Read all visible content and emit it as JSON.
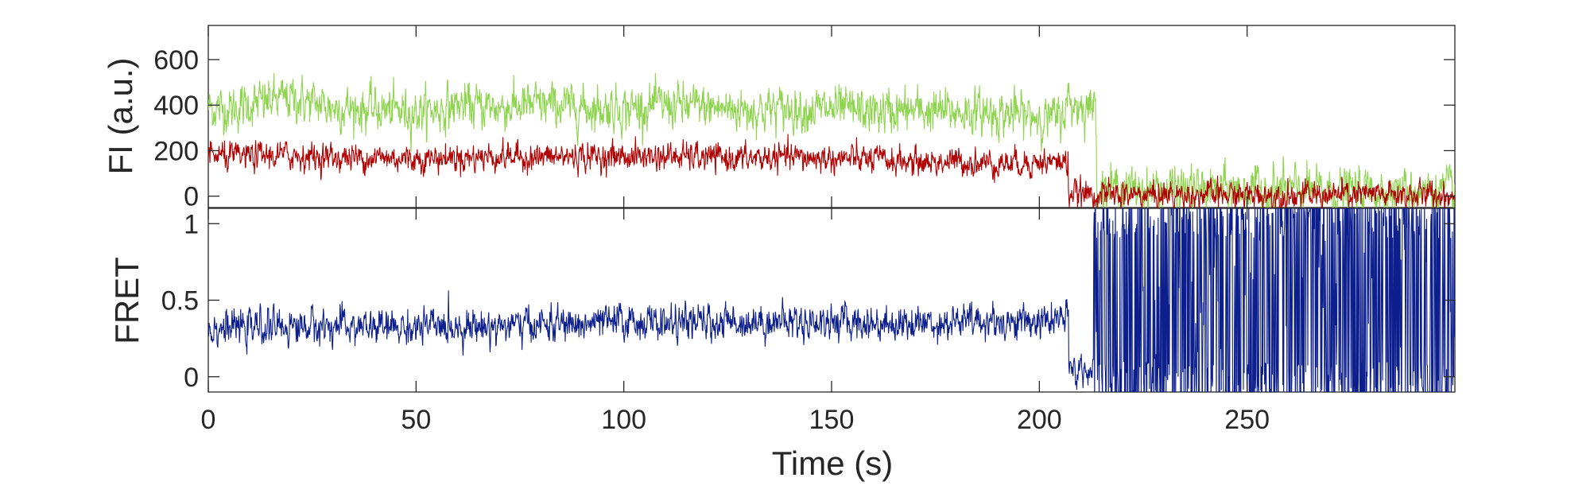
{
  "chart_data": [
    {
      "type": "line",
      "panel": "top",
      "ylabel": "FI (a.u.)",
      "xlabel": "",
      "xlim": [
        0,
        300
      ],
      "ylim": [
        -50,
        750
      ],
      "yticks": [
        0,
        200,
        400,
        600
      ],
      "ytick_labels": [
        "0",
        "200",
        "400",
        "600"
      ],
      "grid": false,
      "box": true,
      "series": [
        {
          "color": "#8fd44f",
          "x": [
            0,
            5,
            10,
            15,
            20,
            25,
            30,
            40,
            50,
            55,
            60,
            70,
            80,
            90,
            100,
            110,
            120,
            130,
            140,
            150,
            160,
            170,
            180,
            190,
            200,
            205,
            207,
            208,
            212,
            213.5,
            214,
            220,
            230,
            240,
            250,
            260,
            270,
            280,
            290,
            300
          ],
          "values": [
            390,
            380,
            400,
            420,
            430,
            410,
            390,
            380,
            370,
            380,
            400,
            390,
            400,
            390,
            385,
            400,
            390,
            380,
            385,
            380,
            370,
            375,
            370,
            365,
            350,
            340,
            420,
            400,
            390,
            400,
            40,
            30,
            30,
            30,
            30,
            30,
            25,
            25,
            25,
            25
          ],
          "noise": 60
        },
        {
          "color": "#b00000",
          "x": [
            0,
            5,
            10,
            20,
            30,
            40,
            50,
            60,
            70,
            80,
            90,
            100,
            110,
            120,
            130,
            140,
            150,
            160,
            170,
            180,
            190,
            200,
            206.9,
            207,
            220,
            240,
            260,
            280,
            300
          ],
          "values": [
            180,
            170,
            175,
            180,
            170,
            170,
            165,
            170,
            175,
            170,
            175,
            175,
            175,
            170,
            165,
            170,
            165,
            160,
            150,
            150,
            145,
            150,
            150,
            10,
            5,
            5,
            5,
            5,
            5
          ],
          "noise": 38
        }
      ]
    },
    {
      "type": "line",
      "panel": "bottom",
      "ylabel": "FRET",
      "xlabel": "Time (s)",
      "xlim": [
        0,
        300
      ],
      "ylim": [
        -0.1,
        1.1
      ],
      "yticks": [
        0,
        0.5,
        1
      ],
      "ytick_labels": [
        "0",
        "0.5",
        "1"
      ],
      "xticks": [
        0,
        50,
        100,
        150,
        200,
        250
      ],
      "xtick_labels": [
        "0",
        "50",
        "100",
        "150",
        "200",
        "250"
      ],
      "grid": false,
      "box": true,
      "series": [
        {
          "color": "#0d1f8c",
          "x": [
            0,
            10,
            20,
            30,
            40,
            50,
            60,
            70,
            80,
            90,
            100,
            110,
            120,
            130,
            140,
            150,
            160,
            170,
            180,
            190,
            200,
            207,
            207.1,
            213,
            213.1,
            300
          ],
          "values": [
            0.32,
            0.32,
            0.33,
            0.33,
            0.32,
            0.32,
            0.33,
            0.33,
            0.34,
            0.34,
            0.36,
            0.35,
            0.35,
            0.36,
            0.36,
            0.36,
            0.35,
            0.35,
            0.36,
            0.36,
            0.36,
            0.37,
            0.05,
            0.05,
            0.5,
            0.5
          ],
          "noise": 0.07,
          "chaotic_after": 213
        }
      ]
    }
  ]
}
